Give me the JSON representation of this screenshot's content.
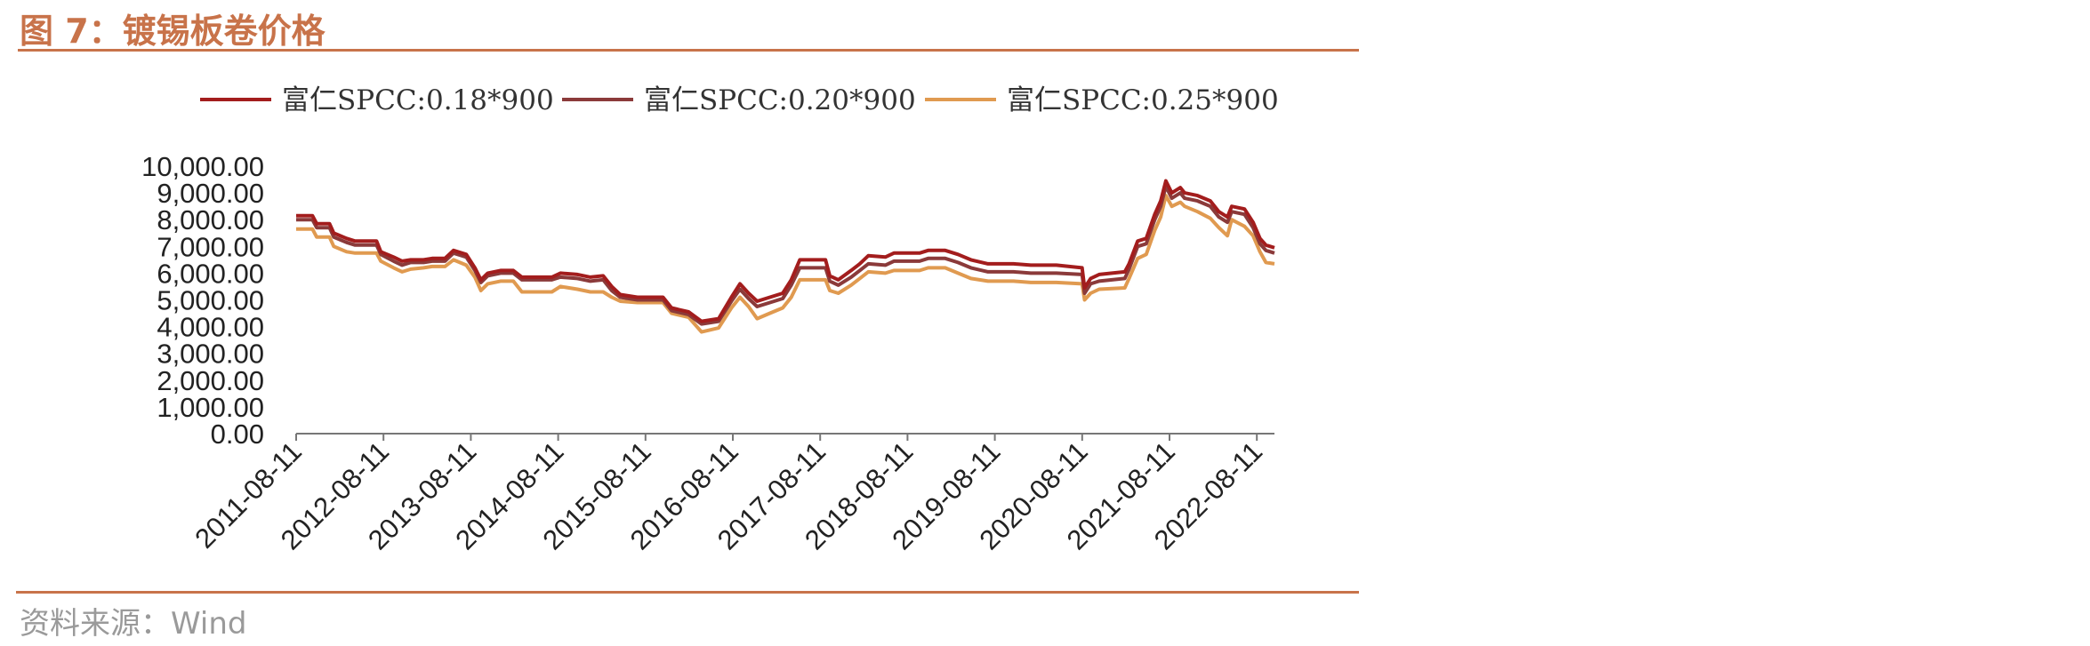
{
  "title": "图 7：镀锡板卷价格",
  "source": "资料来源：Wind",
  "chart_data": {
    "type": "line",
    "title": "",
    "xlabel": "",
    "ylabel": "",
    "ylim": [
      0,
      10000
    ],
    "yticks": [
      "0.00",
      "1,000.00",
      "2,000.00",
      "3,000.00",
      "4,000.00",
      "5,000.00",
      "6,000.00",
      "7,000.00",
      "8,000.00",
      "9,000.00",
      "10,000.00"
    ],
    "xticks": [
      "2011-08-11",
      "2012-08-11",
      "2013-08-11",
      "2014-08-11",
      "2015-08-11",
      "2016-08-11",
      "2017-08-11",
      "2018-08-11",
      "2019-08-11",
      "2020-08-11",
      "2021-08-11",
      "2022-08-11"
    ],
    "x_range": [
      2011.6,
      2022.9
    ],
    "grid": false,
    "legend_position": "top",
    "series": [
      {
        "name": "富仁SPCC:0.18*900",
        "color": "#A31D1D",
        "points": [
          [
            2011.61,
            8150
          ],
          [
            2011.8,
            8150
          ],
          [
            2011.85,
            7850
          ],
          [
            2012.0,
            7850
          ],
          [
            2012.05,
            7500
          ],
          [
            2012.2,
            7300
          ],
          [
            2012.3,
            7200
          ],
          [
            2012.55,
            7200
          ],
          [
            2012.6,
            6800
          ],
          [
            2012.75,
            6600
          ],
          [
            2012.85,
            6450
          ],
          [
            2012.95,
            6500
          ],
          [
            2013.1,
            6500
          ],
          [
            2013.2,
            6550
          ],
          [
            2013.35,
            6550
          ],
          [
            2013.45,
            6850
          ],
          [
            2013.6,
            6700
          ],
          [
            2013.7,
            6200
          ],
          [
            2013.77,
            5750
          ],
          [
            2013.85,
            6000
          ],
          [
            2014.0,
            6100
          ],
          [
            2014.15,
            6100
          ],
          [
            2014.25,
            5850
          ],
          [
            2014.6,
            5850
          ],
          [
            2014.7,
            6000
          ],
          [
            2014.9,
            5950
          ],
          [
            2015.05,
            5850
          ],
          [
            2015.2,
            5900
          ],
          [
            2015.3,
            5500
          ],
          [
            2015.4,
            5200
          ],
          [
            2015.6,
            5100
          ],
          [
            2015.9,
            5100
          ],
          [
            2016.0,
            4700
          ],
          [
            2016.2,
            4550
          ],
          [
            2016.35,
            4200
          ],
          [
            2016.55,
            4300
          ],
          [
            2016.7,
            5100
          ],
          [
            2016.8,
            5600
          ],
          [
            2016.9,
            5250
          ],
          [
            2017.0,
            4950
          ],
          [
            2017.15,
            5100
          ],
          [
            2017.3,
            5250
          ],
          [
            2017.4,
            5750
          ],
          [
            2017.5,
            6500
          ],
          [
            2017.8,
            6500
          ],
          [
            2017.85,
            5900
          ],
          [
            2017.95,
            5750
          ],
          [
            2018.1,
            6100
          ],
          [
            2018.2,
            6350
          ],
          [
            2018.3,
            6650
          ],
          [
            2018.5,
            6600
          ],
          [
            2018.6,
            6750
          ],
          [
            2018.9,
            6750
          ],
          [
            2019.0,
            6850
          ],
          [
            2019.2,
            6850
          ],
          [
            2019.35,
            6700
          ],
          [
            2019.5,
            6500
          ],
          [
            2019.7,
            6350
          ],
          [
            2020.0,
            6350
          ],
          [
            2020.2,
            6300
          ],
          [
            2020.5,
            6300
          ],
          [
            2020.8,
            6200
          ],
          [
            2020.83,
            5450
          ],
          [
            2020.9,
            5800
          ],
          [
            2021.0,
            5950
          ],
          [
            2021.3,
            6050
          ],
          [
            2021.35,
            6350
          ],
          [
            2021.45,
            7200
          ],
          [
            2021.55,
            7300
          ],
          [
            2021.65,
            8200
          ],
          [
            2021.72,
            8700
          ],
          [
            2021.78,
            9450
          ],
          [
            2021.85,
            9000
          ],
          [
            2021.95,
            9200
          ],
          [
            2022.0,
            9000
          ],
          [
            2022.15,
            8900
          ],
          [
            2022.3,
            8700
          ],
          [
            2022.4,
            8300
          ],
          [
            2022.5,
            8100
          ],
          [
            2022.55,
            8500
          ],
          [
            2022.7,
            8400
          ],
          [
            2022.8,
            7900
          ],
          [
            2022.88,
            7300
          ],
          [
            2022.95,
            7050
          ],
          [
            2023.05,
            6950
          ]
        ]
      },
      {
        "name": "富仁SPCC:0.20*900",
        "color": "#8B3A3A",
        "points": [
          [
            2011.61,
            8000
          ],
          [
            2011.8,
            8000
          ],
          [
            2011.85,
            7700
          ],
          [
            2012.0,
            7700
          ],
          [
            2012.05,
            7350
          ],
          [
            2012.2,
            7150
          ],
          [
            2012.3,
            7050
          ],
          [
            2012.55,
            7050
          ],
          [
            2012.6,
            6700
          ],
          [
            2012.75,
            6450
          ],
          [
            2012.85,
            6300
          ],
          [
            2012.95,
            6400
          ],
          [
            2013.1,
            6400
          ],
          [
            2013.2,
            6450
          ],
          [
            2013.35,
            6450
          ],
          [
            2013.45,
            6750
          ],
          [
            2013.6,
            6600
          ],
          [
            2013.7,
            6100
          ],
          [
            2013.77,
            5650
          ],
          [
            2013.85,
            5900
          ],
          [
            2014.0,
            6000
          ],
          [
            2014.15,
            6000
          ],
          [
            2014.25,
            5750
          ],
          [
            2014.6,
            5750
          ],
          [
            2014.7,
            5850
          ],
          [
            2014.9,
            5800
          ],
          [
            2015.05,
            5700
          ],
          [
            2015.2,
            5750
          ],
          [
            2015.3,
            5350
          ],
          [
            2015.4,
            5100
          ],
          [
            2015.6,
            5000
          ],
          [
            2015.9,
            5000
          ],
          [
            2016.0,
            4600
          ],
          [
            2016.2,
            4450
          ],
          [
            2016.35,
            4100
          ],
          [
            2016.55,
            4200
          ],
          [
            2016.7,
            4950
          ],
          [
            2016.8,
            5400
          ],
          [
            2016.9,
            5050
          ],
          [
            2017.0,
            4750
          ],
          [
            2017.15,
            4900
          ],
          [
            2017.3,
            5050
          ],
          [
            2017.4,
            5550
          ],
          [
            2017.5,
            6200
          ],
          [
            2017.8,
            6200
          ],
          [
            2017.85,
            5700
          ],
          [
            2017.95,
            5550
          ],
          [
            2018.1,
            5850
          ],
          [
            2018.2,
            6100
          ],
          [
            2018.3,
            6350
          ],
          [
            2018.5,
            6300
          ],
          [
            2018.6,
            6450
          ],
          [
            2018.9,
            6450
          ],
          [
            2019.0,
            6550
          ],
          [
            2019.2,
            6550
          ],
          [
            2019.35,
            6400
          ],
          [
            2019.5,
            6200
          ],
          [
            2019.7,
            6050
          ],
          [
            2020.0,
            6050
          ],
          [
            2020.2,
            6000
          ],
          [
            2020.5,
            6000
          ],
          [
            2020.8,
            5950
          ],
          [
            2020.83,
            5250
          ],
          [
            2020.9,
            5600
          ],
          [
            2021.0,
            5700
          ],
          [
            2021.3,
            5800
          ],
          [
            2021.35,
            6150
          ],
          [
            2021.45,
            7000
          ],
          [
            2021.55,
            7100
          ],
          [
            2021.65,
            8000
          ],
          [
            2021.72,
            8500
          ],
          [
            2021.78,
            9250
          ],
          [
            2021.85,
            8800
          ],
          [
            2021.95,
            9000
          ],
          [
            2022.0,
            8800
          ],
          [
            2022.15,
            8700
          ],
          [
            2022.3,
            8500
          ],
          [
            2022.4,
            8100
          ],
          [
            2022.5,
            7900
          ],
          [
            2022.55,
            8300
          ],
          [
            2022.7,
            8200
          ],
          [
            2022.8,
            7700
          ],
          [
            2022.88,
            7100
          ],
          [
            2022.95,
            6850
          ],
          [
            2023.05,
            6750
          ]
        ]
      },
      {
        "name": "富仁SPCC:0.25*900",
        "color": "#E09A50",
        "points": [
          [
            2011.61,
            7650
          ],
          [
            2011.8,
            7650
          ],
          [
            2011.85,
            7350
          ],
          [
            2012.0,
            7350
          ],
          [
            2012.05,
            7000
          ],
          [
            2012.2,
            6800
          ],
          [
            2012.3,
            6750
          ],
          [
            2012.55,
            6750
          ],
          [
            2012.6,
            6450
          ],
          [
            2012.75,
            6200
          ],
          [
            2012.85,
            6050
          ],
          [
            2012.95,
            6150
          ],
          [
            2013.1,
            6200
          ],
          [
            2013.2,
            6250
          ],
          [
            2013.35,
            6250
          ],
          [
            2013.45,
            6500
          ],
          [
            2013.6,
            6300
          ],
          [
            2013.7,
            5850
          ],
          [
            2013.77,
            5350
          ],
          [
            2013.85,
            5600
          ],
          [
            2014.0,
            5700
          ],
          [
            2014.15,
            5700
          ],
          [
            2014.25,
            5300
          ],
          [
            2014.6,
            5300
          ],
          [
            2014.7,
            5500
          ],
          [
            2014.9,
            5400
          ],
          [
            2015.05,
            5300
          ],
          [
            2015.2,
            5300
          ],
          [
            2015.3,
            5100
          ],
          [
            2015.4,
            4950
          ],
          [
            2015.6,
            4900
          ],
          [
            2015.9,
            4900
          ],
          [
            2016.0,
            4500
          ],
          [
            2016.2,
            4350
          ],
          [
            2016.35,
            3800
          ],
          [
            2016.55,
            3950
          ],
          [
            2016.7,
            4700
          ],
          [
            2016.8,
            5100
          ],
          [
            2016.9,
            4750
          ],
          [
            2017.0,
            4300
          ],
          [
            2017.15,
            4500
          ],
          [
            2017.3,
            4700
          ],
          [
            2017.4,
            5100
          ],
          [
            2017.5,
            5750
          ],
          [
            2017.8,
            5750
          ],
          [
            2017.85,
            5350
          ],
          [
            2017.95,
            5250
          ],
          [
            2018.1,
            5550
          ],
          [
            2018.2,
            5800
          ],
          [
            2018.3,
            6050
          ],
          [
            2018.5,
            6000
          ],
          [
            2018.6,
            6100
          ],
          [
            2018.9,
            6100
          ],
          [
            2019.0,
            6200
          ],
          [
            2019.2,
            6200
          ],
          [
            2019.35,
            6000
          ],
          [
            2019.5,
            5800
          ],
          [
            2019.7,
            5700
          ],
          [
            2020.0,
            5700
          ],
          [
            2020.2,
            5650
          ],
          [
            2020.5,
            5650
          ],
          [
            2020.8,
            5600
          ],
          [
            2020.83,
            5000
          ],
          [
            2020.9,
            5250
          ],
          [
            2021.0,
            5400
          ],
          [
            2021.3,
            5450
          ],
          [
            2021.35,
            5800
          ],
          [
            2021.45,
            6550
          ],
          [
            2021.55,
            6700
          ],
          [
            2021.65,
            7600
          ],
          [
            2021.72,
            8100
          ],
          [
            2021.78,
            8900
          ],
          [
            2021.85,
            8500
          ],
          [
            2021.95,
            8650
          ],
          [
            2022.0,
            8500
          ],
          [
            2022.15,
            8300
          ],
          [
            2022.3,
            8050
          ],
          [
            2022.4,
            7700
          ],
          [
            2022.5,
            7400
          ],
          [
            2022.55,
            8000
          ],
          [
            2022.7,
            7750
          ],
          [
            2022.8,
            7400
          ],
          [
            2022.88,
            6800
          ],
          [
            2022.95,
            6400
          ],
          [
            2023.05,
            6350
          ]
        ]
      }
    ]
  }
}
